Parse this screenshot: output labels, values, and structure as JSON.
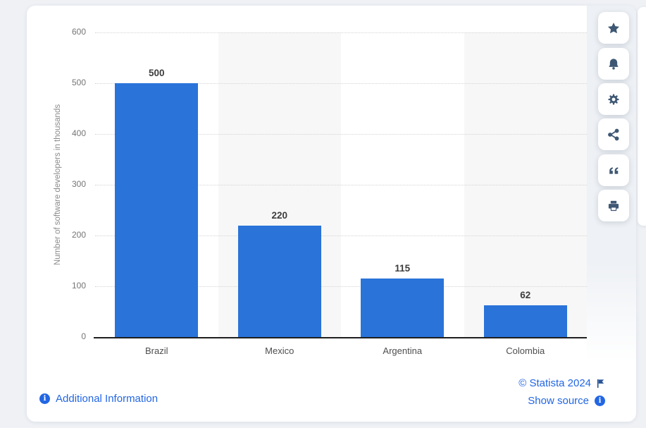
{
  "chart_data": {
    "type": "bar",
    "categories": [
      "Brazil",
      "Mexico",
      "Argentina",
      "Colombia"
    ],
    "values": [
      500,
      220,
      115,
      62
    ],
    "data_labels": [
      "500",
      "220",
      "115",
      "62"
    ],
    "title": "",
    "xlabel": "",
    "ylabel": "Number of software developers in thousands",
    "ylim": [
      0,
      600
    ],
    "yticks": [
      600,
      500,
      400,
      300,
      200,
      100,
      0
    ],
    "grid": "horizontal dotted gridlines on",
    "legend": "none",
    "bar_color": "#2a73d9",
    "alternating_band_color": "#f7f7f8",
    "banded_columns": [
      1,
      3
    ]
  },
  "toolbar": {
    "buttons": [
      {
        "name": "favorite",
        "icon": "star-icon"
      },
      {
        "name": "notifications",
        "icon": "bell-icon"
      },
      {
        "name": "settings",
        "icon": "gear-icon"
      },
      {
        "name": "share",
        "icon": "share-icon"
      },
      {
        "name": "cite",
        "icon": "quote-icon"
      },
      {
        "name": "print",
        "icon": "printer-icon"
      }
    ]
  },
  "footer": {
    "additional_information": "Additional Information",
    "copyright": "© Statista 2024",
    "show_source": "Show source"
  },
  "colors": {
    "bar": "#2a73d9",
    "link": "#2266e3",
    "toolbar_icon": "#3e5874",
    "axis_line": "#1f1f1f",
    "gridline": "#d4d4d4",
    "page_background": "#eff1f5",
    "flag_icon": "#2c5598"
  }
}
